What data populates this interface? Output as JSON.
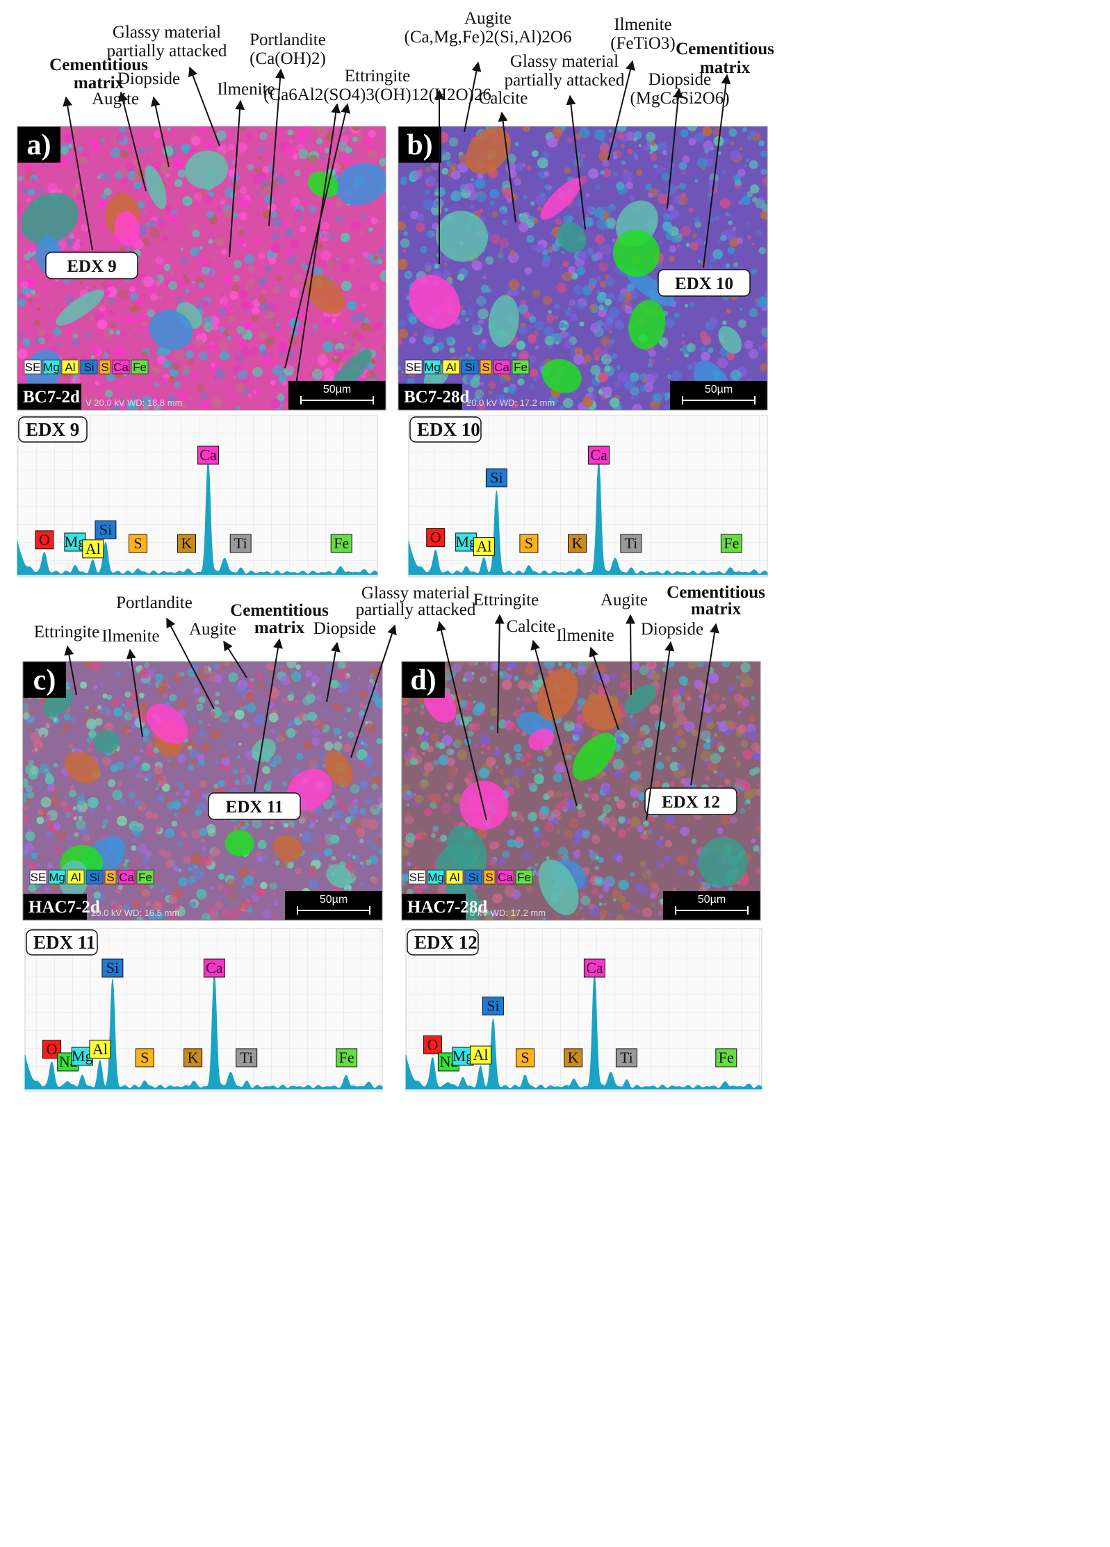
{
  "colors": {
    "spectrum": "#1aa3c4",
    "O": "#ff1a1a",
    "Na": "#33e633",
    "Mg": "#33e6e6",
    "Al": "#ffff33",
    "Si": "#1f7ad4",
    "S": "#ffb31a",
    "K": "#c98a1e",
    "Ca": "#ff33cc",
    "Ti": "#9a9a9a",
    "Fe": "#66dd44",
    "SE": "#ffffff"
  },
  "legend": [
    "SE",
    "Mg",
    "Al",
    "Si",
    "S",
    "Ca",
    "Fe"
  ],
  "panels": [
    {
      "letter": "a)",
      "sample": "BC7-2d",
      "kv_wd": "V 20.0 kV  WD: 18.8 mm",
      "scale": "50µm",
      "edx_label": "EDX 9",
      "annotations": [
        "Cementitious",
        "matrix",
        "Augite",
        "Diopside",
        "Glassy material",
        "partially attacked",
        "Ilmenite",
        "Portlandite",
        "(Ca(OH)2)",
        "Ettringite",
        "(Ca6Al2(SO4)3(OH)12(H2O)26"
      ]
    },
    {
      "letter": "b)",
      "sample": "BC7-28d",
      "kv_wd": "20.0 kV  WD: 17.2 mm",
      "scale": "50µm",
      "edx_label": "EDX 10",
      "annotations": [
        "Augite",
        "(Ca,Mg,Fe)2(Si,Al)2O6",
        "Calcite",
        "Glassy material",
        "partially attacked",
        "Ilmenite",
        "(FeTiO3)",
        "Diopside",
        "(MgCaSi2O6)",
        "Cementitious",
        "matrix"
      ]
    },
    {
      "letter": "c)",
      "sample": "HAC7-2d",
      "kv_wd": "20.0 kV  WD: 16.5 mm",
      "scale": "50µm",
      "edx_label": "EDX 11",
      "annotations": [
        "Ettringite",
        "Ilmenite",
        "Portlandite",
        "Augite",
        "Cementitious",
        "matrix",
        "Diopside",
        "Glassy material",
        "partially attacked"
      ]
    },
    {
      "letter": "d)",
      "sample": "HAC7-28d",
      "kv_wd": "0 kV  WD: 17.2 mm",
      "scale": "50µm",
      "edx_label": "EDX 12",
      "annotations": [
        "Ettringite",
        "Calcite",
        "Ilmenite",
        "Augite",
        "Diopside",
        "Cementitious",
        "matrix"
      ]
    }
  ],
  "chart_data": [
    {
      "type": "line",
      "title": "EDX 9",
      "peaks": [
        {
          "element": "O",
          "intensity": 0.18
        },
        {
          "element": "Mg",
          "intensity": 0.06
        },
        {
          "element": "Al",
          "intensity": 0.1
        },
        {
          "element": "Si",
          "intensity": 0.27
        },
        {
          "element": "S",
          "intensity": 0.03
        },
        {
          "element": "K",
          "intensity": 0.03
        },
        {
          "element": "Ca",
          "intensity": 1.0
        },
        {
          "element": "Ti",
          "intensity": 0.03
        },
        {
          "element": "Fe",
          "intensity": 0.05
        }
      ]
    },
    {
      "type": "line",
      "title": "EDX 10",
      "peaks": [
        {
          "element": "O",
          "intensity": 0.2
        },
        {
          "element": "Mg",
          "intensity": 0.05
        },
        {
          "element": "Al",
          "intensity": 0.12
        },
        {
          "element": "Si",
          "intensity": 0.73
        },
        {
          "element": "S",
          "intensity": 0.06
        },
        {
          "element": "K",
          "intensity": 0.03
        },
        {
          "element": "Ca",
          "intensity": 1.0
        },
        {
          "element": "Ti",
          "intensity": 0.03
        },
        {
          "element": "Fe",
          "intensity": 0.04
        }
      ]
    },
    {
      "type": "line",
      "title": "EDX 11",
      "peaks": [
        {
          "element": "O",
          "intensity": 0.22
        },
        {
          "element": "Na",
          "intensity": 0.06
        },
        {
          "element": "Mg",
          "intensity": 0.1
        },
        {
          "element": "Al",
          "intensity": 0.22
        },
        {
          "element": "Si",
          "intensity": 0.95
        },
        {
          "element": "S",
          "intensity": 0.05
        },
        {
          "element": "K",
          "intensity": 0.05
        },
        {
          "element": "Ca",
          "intensity": 1.0
        },
        {
          "element": "Ti",
          "intensity": 0.04
        },
        {
          "element": "Fe",
          "intensity": 0.1
        }
      ]
    },
    {
      "type": "line",
      "title": "EDX 12",
      "peaks": [
        {
          "element": "O",
          "intensity": 0.26
        },
        {
          "element": "Na",
          "intensity": 0.05
        },
        {
          "element": "Mg",
          "intensity": 0.08
        },
        {
          "element": "Al",
          "intensity": 0.17
        },
        {
          "element": "Si",
          "intensity": 0.6
        },
        {
          "element": "S",
          "intensity": 0.1
        },
        {
          "element": "K",
          "intensity": 0.07
        },
        {
          "element": "Ca",
          "intensity": 1.0
        },
        {
          "element": "Ti",
          "intensity": 0.05
        },
        {
          "element": "Fe",
          "intensity": 0.04
        }
      ]
    }
  ]
}
